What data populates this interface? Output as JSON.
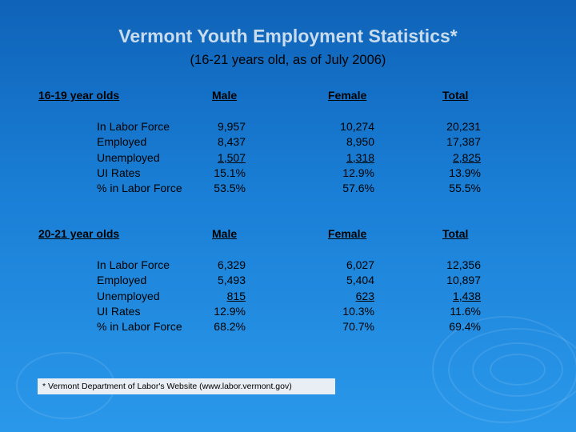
{
  "slide": {
    "title": "Vermont Youth Employment Statistics*",
    "subtitle": "(16-21 years old, as of July 2006)"
  },
  "sections": [
    {
      "group_label": "16-19 year olds",
      "headers": {
        "male": "Male",
        "female": "Female",
        "total": "Total"
      },
      "row_labels": [
        "In Labor Force",
        "Employed",
        "Unemployed",
        "UI Rates",
        "% in Labor Force"
      ],
      "male": [
        "9,957",
        "8,437",
        "1,507",
        "15.1%",
        "53.5%"
      ],
      "female": [
        "10,274",
        "8,950",
        "1,318",
        "12.9%",
        "57.6%"
      ],
      "total": [
        "20,231",
        "17,387",
        "2,825",
        "13.9%",
        "55.5%"
      ]
    },
    {
      "group_label": "20-21 year olds",
      "headers": {
        "male": "Male",
        "female": "Female",
        "total": "Total"
      },
      "row_labels": [
        "In Labor Force",
        "Employed",
        "Unemployed",
        "UI Rates",
        "% in Labor Force"
      ],
      "male": [
        "6,329",
        "5,493",
        "815",
        "12.9%",
        "68.2%"
      ],
      "female": [
        "6,027",
        "5,404",
        "623",
        "10.3%",
        "70.7%"
      ],
      "total": [
        "12,356",
        "10,897",
        "1,438",
        "11.6%",
        "69.4%"
      ]
    }
  ],
  "footnote": "* Vermont Department of Labor's Website (www.labor.vermont.gov)",
  "colors": {
    "background": "#1a7fd6",
    "title": "#c9dcec",
    "text": "#000000"
  }
}
